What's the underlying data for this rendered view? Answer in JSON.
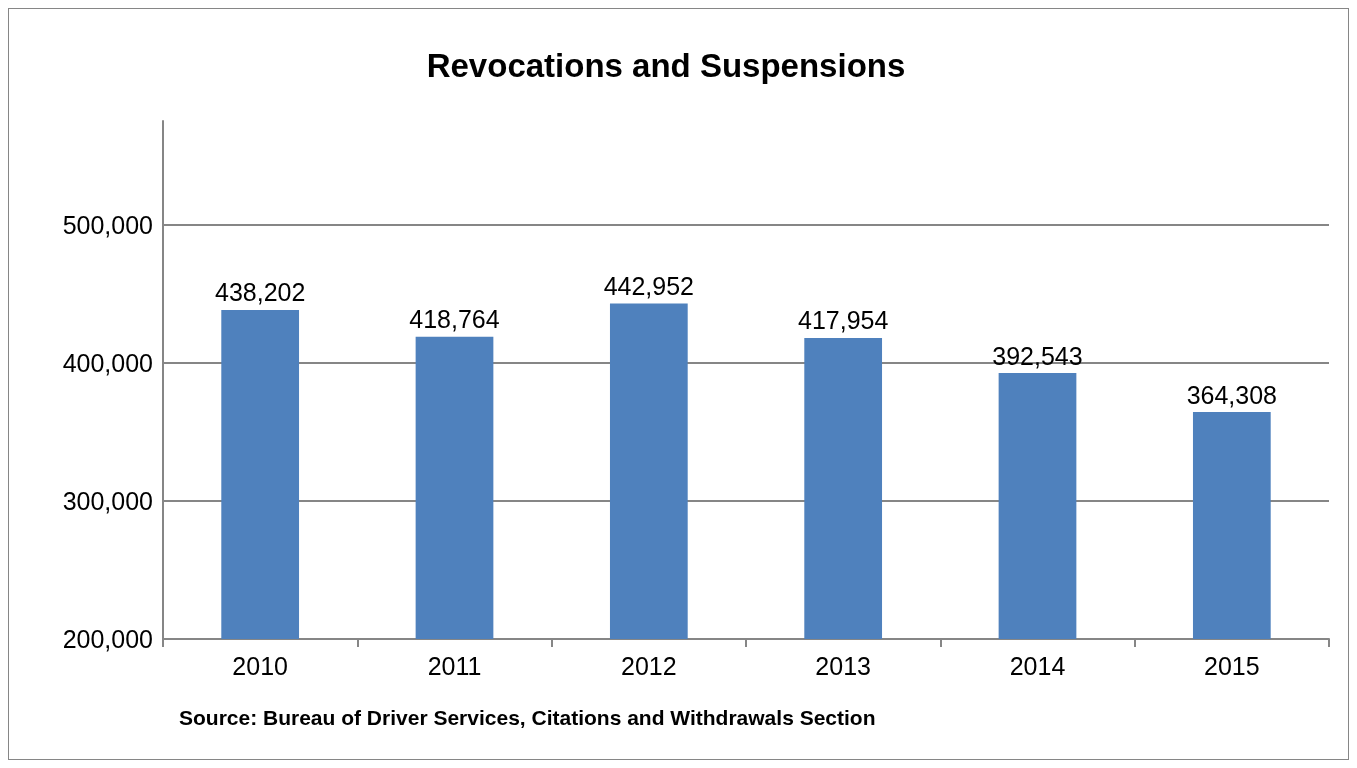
{
  "chart_data": {
    "type": "bar",
    "title": "Revocations and Suspensions",
    "categories": [
      "2010",
      "2011",
      "2012",
      "2013",
      "2014",
      "2015"
    ],
    "values": [
      438202,
      418764,
      442952,
      417954,
      392543,
      364308
    ],
    "value_labels": [
      "438,202",
      "418,764",
      "442,952",
      "417,954",
      "392,543",
      "364,308"
    ],
    "color": "#4f81bd",
    "ylim": [
      200000,
      575000
    ],
    "yticks": [
      {
        "value": 200000,
        "label": "200,000"
      },
      {
        "value": 300000,
        "label": "300,000"
      },
      {
        "value": 400000,
        "label": "400,000"
      },
      {
        "value": 500000,
        "label": "500,000"
      }
    ],
    "grid": "y",
    "annotations": [
      "Source: Bureau of Driver Services, Citations and Withdrawals Section"
    ]
  }
}
